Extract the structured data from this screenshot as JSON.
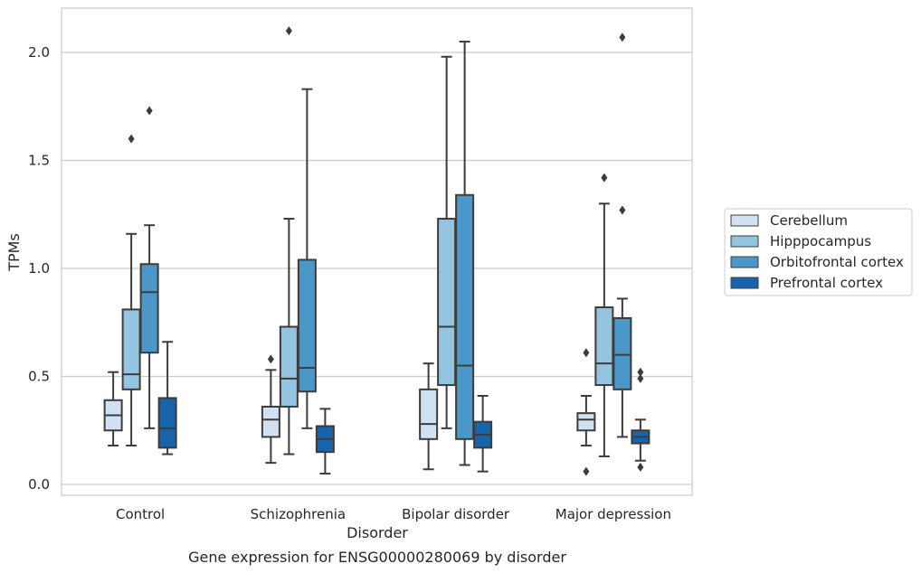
{
  "caption": "Gene expression for ENSG00000280069 by disorder",
  "chart_data": {
    "type": "boxplot",
    "title": "",
    "xlabel": "Disorder",
    "ylabel": "TPMs",
    "ylim": [
      -0.05,
      2.22
    ],
    "yticks": [
      0.0,
      0.5,
      1.0,
      1.5,
      2.0
    ],
    "ytick_labels": [
      "0.0",
      "0.5",
      "1.0",
      "1.5",
      "2.0"
    ],
    "grid": "horizontal",
    "legend_position": "right",
    "categories": [
      "Control",
      "Schizophrenia",
      "Bipolar disorder",
      "Major depression"
    ],
    "series": [
      {
        "name": "Cerebellum",
        "color": "#d0e1f2",
        "boxes": [
          {
            "whislo": 0.18,
            "q1": 0.25,
            "med": 0.32,
            "q3": 0.39,
            "whishi": 0.52,
            "fliers": []
          },
          {
            "whislo": 0.1,
            "q1": 0.22,
            "med": 0.3,
            "q3": 0.36,
            "whishi": 0.53,
            "fliers": [
              0.58
            ]
          },
          {
            "whislo": 0.07,
            "q1": 0.21,
            "med": 0.28,
            "q3": 0.44,
            "whishi": 0.56,
            "fliers": []
          },
          {
            "whislo": 0.18,
            "q1": 0.25,
            "med": 0.3,
            "q3": 0.33,
            "whishi": 0.41,
            "fliers": [
              0.61,
              0.06
            ]
          }
        ]
      },
      {
        "name": "Hipppocampus",
        "color": "#94c4df",
        "boxes": [
          {
            "whislo": 0.18,
            "q1": 0.44,
            "med": 0.51,
            "q3": 0.81,
            "whishi": 1.16,
            "fliers": [
              1.6
            ]
          },
          {
            "whislo": 0.14,
            "q1": 0.36,
            "med": 0.49,
            "q3": 0.73,
            "whishi": 1.23,
            "fliers": [
              2.1
            ]
          },
          {
            "whislo": 0.26,
            "q1": 0.46,
            "med": 0.73,
            "q3": 1.23,
            "whishi": 1.98,
            "fliers": []
          },
          {
            "whislo": 0.13,
            "q1": 0.46,
            "med": 0.56,
            "q3": 0.82,
            "whishi": 1.3,
            "fliers": [
              1.42
            ]
          }
        ]
      },
      {
        "name": "Orbitofrontal cortex",
        "color": "#4a98c9",
        "boxes": [
          {
            "whislo": 0.26,
            "q1": 0.61,
            "med": 0.89,
            "q3": 1.02,
            "whishi": 1.2,
            "fliers": [
              1.73
            ]
          },
          {
            "whislo": 0.26,
            "q1": 0.43,
            "med": 0.54,
            "q3": 1.04,
            "whishi": 1.83,
            "fliers": []
          },
          {
            "whislo": 0.09,
            "q1": 0.21,
            "med": 0.55,
            "q3": 1.34,
            "whishi": 2.05,
            "fliers": []
          },
          {
            "whislo": 0.22,
            "q1": 0.44,
            "med": 0.6,
            "q3": 0.77,
            "whishi": 0.86,
            "fliers": [
              2.07,
              1.27
            ]
          }
        ]
      },
      {
        "name": "Prefrontal cortex",
        "color": "#1764ab",
        "boxes": [
          {
            "whislo": 0.14,
            "q1": 0.17,
            "med": 0.26,
            "q3": 0.4,
            "whishi": 0.66,
            "fliers": []
          },
          {
            "whislo": 0.05,
            "q1": 0.15,
            "med": 0.21,
            "q3": 0.27,
            "whishi": 0.35,
            "fliers": []
          },
          {
            "whislo": 0.06,
            "q1": 0.17,
            "med": 0.23,
            "q3": 0.29,
            "whishi": 0.41,
            "fliers": []
          },
          {
            "whislo": 0.11,
            "q1": 0.19,
            "med": 0.22,
            "q3": 0.25,
            "whishi": 0.3,
            "fliers": [
              0.52,
              0.49,
              0.08
            ]
          }
        ]
      }
    ]
  }
}
